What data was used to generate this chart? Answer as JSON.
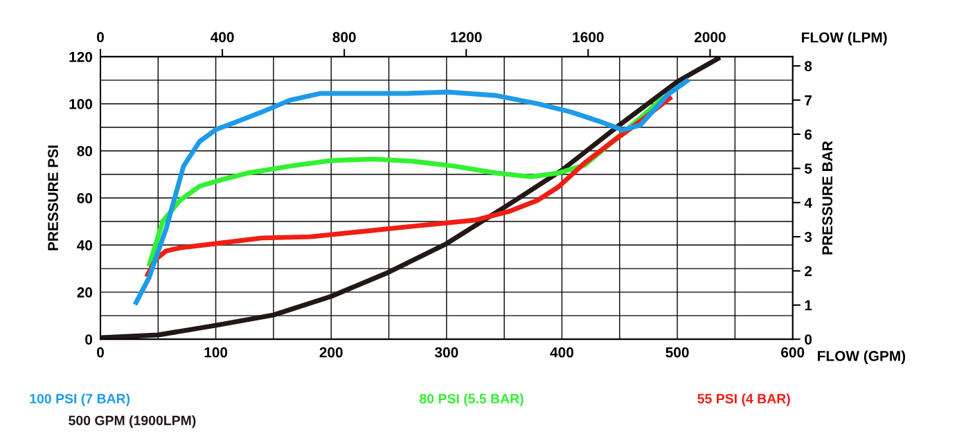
{
  "chart_data": {
    "type": "line",
    "xlabel": "FLOW (GPM)",
    "x2label": "FLOW (LPM)",
    "ylabel": "PRESSURE PSI",
    "y2label": "PRESSURE BAR",
    "xlim": [
      0,
      600
    ],
    "xticks": [
      0,
      100,
      200,
      300,
      400,
      500,
      600
    ],
    "ylim": [
      0,
      120
    ],
    "yticks": [
      0,
      20,
      40,
      60,
      80,
      100,
      120
    ],
    "x2lim": [
      0,
      2271
    ],
    "x2ticks": [
      0,
      400,
      800,
      1200,
      1600,
      2000
    ],
    "y2lim": [
      0,
      8.27
    ],
    "y2ticks": [
      0,
      1,
      2,
      3,
      4,
      5,
      6,
      7,
      8
    ],
    "grid": true,
    "legend": "bottom",
    "marker": "none",
    "line_style": "solid",
    "series": [
      {
        "name": "100 PSI (7 BAR)",
        "color": "#1e9be8",
        "x": [
          30,
          42,
          57,
          72,
          86,
          100,
          116,
          140,
          164,
          191,
          224,
          265,
          301,
          343,
          379,
          408,
          432,
          453,
          468,
          492,
          510
        ],
        "values": [
          14.7,
          26,
          47,
          73.5,
          84,
          89,
          92,
          96.5,
          101.5,
          104.4,
          104.4,
          104.4,
          105,
          103.5,
          100,
          96.5,
          92.6,
          88.8,
          91,
          104,
          110.3
        ]
      },
      {
        "name": "500 GPM (1900LPM)",
        "color": "#231815",
        "x": [
          0,
          50,
          100,
          150,
          200,
          250,
          300,
          350,
          400,
          450,
          500,
          537
        ],
        "values": [
          0.6,
          1.8,
          5.9,
          10.3,
          18.2,
          28.5,
          40.6,
          56,
          71.8,
          91,
          109.4,
          119.7
        ]
      },
      {
        "name": "80 PSI (5.5 BAR)",
        "color": "#33f033",
        "x": [
          42,
          54,
          69,
          86,
          104,
          128,
          164,
          200,
          236,
          271,
          307,
          343,
          373,
          397,
          420,
          444,
          468,
          489
        ],
        "values": [
          31,
          50,
          59,
          65,
          67.6,
          70.6,
          73.5,
          75.9,
          76.5,
          75.6,
          73.5,
          70.6,
          69,
          70.6,
          74,
          84,
          94,
          103
        ]
      },
      {
        "name": "55 PSI (4 BAR)",
        "color": "#f01e14",
        "x": [
          40,
          48,
          57,
          69,
          100,
          140,
          182,
          224,
          271,
          325,
          355,
          379,
          397,
          420,
          444,
          468,
          495
        ],
        "values": [
          26.5,
          34,
          37.5,
          38.8,
          40.6,
          43,
          43.5,
          45.6,
          48,
          50.6,
          54.4,
          59,
          64.7,
          75,
          84,
          92.6,
          103
        ]
      }
    ]
  }
}
